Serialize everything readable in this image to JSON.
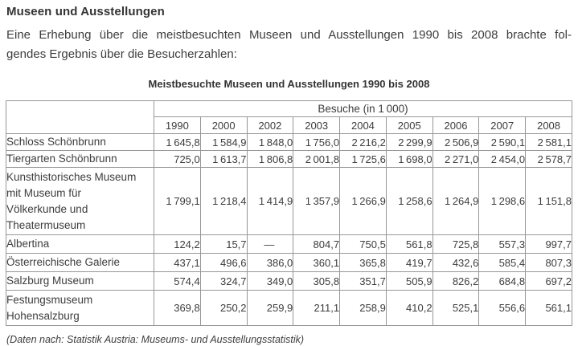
{
  "page": {
    "heading": "Museen und Ausstellungen",
    "intro_line1": "Eine Erhebung über die meistbesuchten Museen und Ausstellungen 1990 bis 2008 brachte fol-",
    "intro_line2": "gendes Ergebnis über die Besucherzahlen:",
    "source_note": "(Daten nach: Statistik Austria: Museums- und Ausstellungsstatistik)"
  },
  "table": {
    "title": "Meistbesuchte Museen und Ausstellungen 1990 bis 2008",
    "group_header": "Besuche (in 1 000)",
    "years": [
      "1990",
      "2000",
      "2002",
      "2003",
      "2004",
      "2005",
      "2006",
      "2007",
      "2008"
    ],
    "rows": [
      {
        "name": "Schloss Schönbrunn",
        "values": [
          "1 645,8",
          "1 584,9",
          "1 848,0",
          "1 756,0",
          "2 216,2",
          "2 299,9",
          "2 506,9",
          "2 590,1",
          "2 581,1"
        ]
      },
      {
        "name": "Tiergarten Schönbrunn",
        "values": [
          "725,0",
          "1 613,7",
          "1 806,8",
          "2 001,8",
          "1 725,6",
          "1 698,0",
          "2 271,0",
          "2 454,0",
          "2 578,7"
        ]
      },
      {
        "name": "Kunsthistorisches Museum\nmit Museum für\nVölkerkunde und\nTheatermuseum",
        "values": [
          "1 799,1",
          "1 218,4",
          "1 414,9",
          "1 357,9",
          "1 266,9",
          "1 258,6",
          "1 264,9",
          "1 298,6",
          "1 151,8"
        ]
      },
      {
        "name": "Albertina",
        "values": [
          "124,2",
          "15,7",
          "—",
          "804,7",
          "750,5",
          "561,8",
          "725,8",
          "557,3",
          "997,7"
        ]
      },
      {
        "name": "Österreichische Galerie",
        "values": [
          "437,1",
          "496,6",
          "386,0",
          "360,1",
          "365,8",
          "419,7",
          "432,6",
          "585,4",
          "807,3"
        ]
      },
      {
        "name": "Salzburg Museum",
        "values": [
          "574,4",
          "324,7",
          "349,0",
          "305,8",
          "351,7",
          "505,9",
          "826,2",
          "684,8",
          "697,2"
        ]
      },
      {
        "name": "Festungsmuseum\nHohensalzburg",
        "values": [
          "369,8",
          "250,2",
          "259,9",
          "211,1",
          "258,9",
          "410,2",
          "525,1",
          "556,6",
          "561,1"
        ]
      }
    ]
  }
}
